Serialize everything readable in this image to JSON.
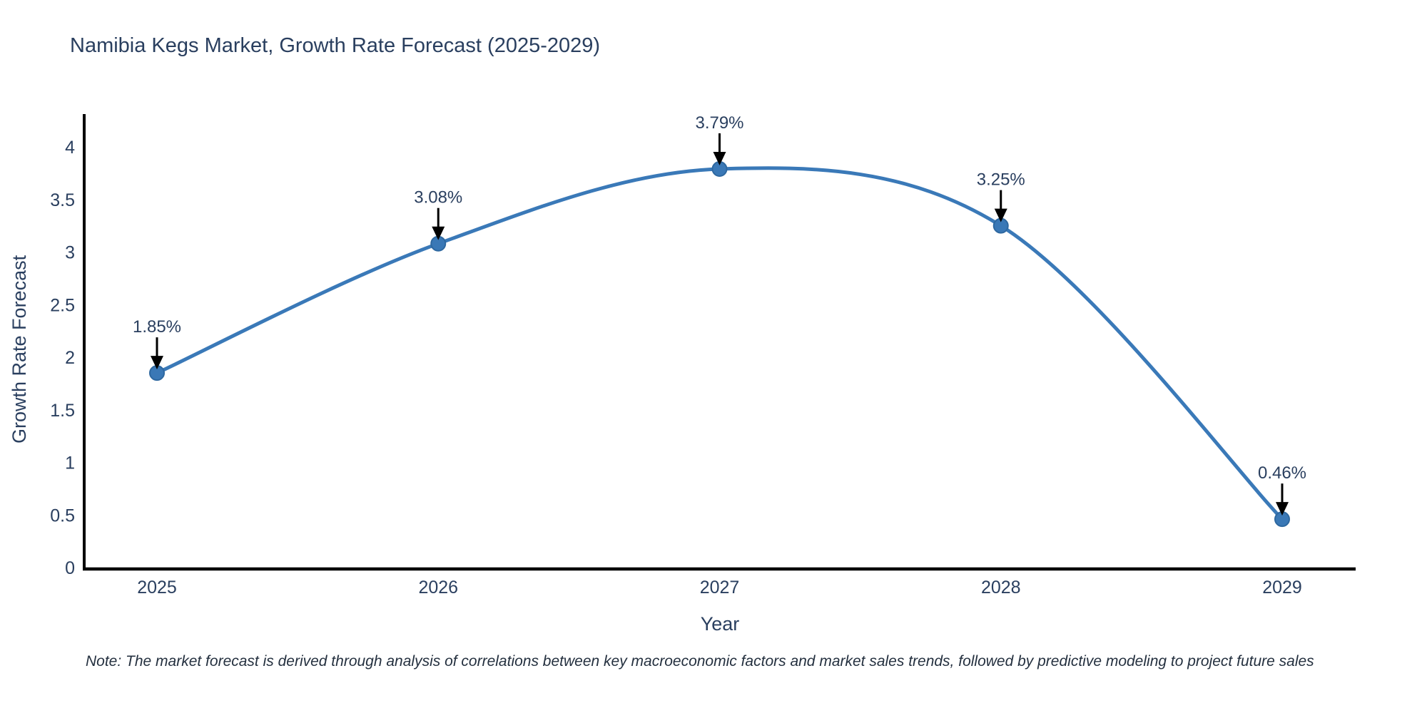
{
  "note": "Note: The market forecast is derived through analysis of correlations between key macroeconomic factors and market sales trends, followed by predictive modeling to project future sales",
  "colors": {
    "line": "#3a79b8",
    "marker_fill": "#3a78b6",
    "marker_edge": "#2e68a0",
    "text": "#2a3f5f",
    "axis_line": "#000000",
    "arrow": "#000000",
    "background": "#ffffff"
  },
  "chart_data": {
    "type": "line",
    "title": "Namibia Kegs Market, Growth Rate Forecast (2025-2029)",
    "xlabel": "Year",
    "ylabel": "Growth Rate Forecast",
    "x": [
      2025,
      2026,
      2027,
      2028,
      2029
    ],
    "values": [
      1.85,
      3.08,
      3.79,
      3.25,
      0.46
    ],
    "point_labels": [
      "1.85%",
      "3.08%",
      "3.79%",
      "3.25%",
      "0.46%"
    ],
    "series_name": "Growth Rate Forecast",
    "ylim": [
      0,
      4
    ],
    "ytick_step": 0.5,
    "line_shape": "spline",
    "markers": true,
    "grid": false,
    "legend_position": "none",
    "annotations_style": "label-with-down-arrow"
  }
}
